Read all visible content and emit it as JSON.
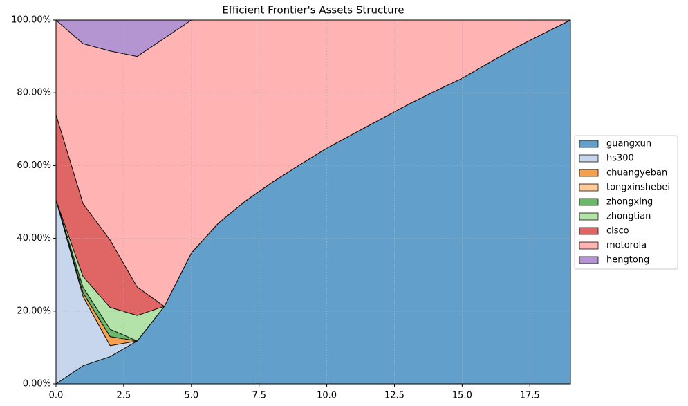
{
  "chart_data": {
    "type": "stacked_area",
    "title": "Efficient Frontier's Assets Structure",
    "x": [
      0,
      1,
      2,
      3,
      4,
      5,
      6,
      7,
      8,
      9,
      10,
      11,
      12,
      13,
      14,
      15,
      16,
      17,
      18,
      19
    ],
    "series": [
      {
        "name": "guangxun",
        "color": "#629fca",
        "values": [
          0,
          5,
          7.5,
          11.8,
          21.3,
          36,
          44.2,
          50.3,
          55.5,
          60.2,
          64.8,
          68.8,
          72.8,
          76.8,
          80.5,
          84,
          88.3,
          92.5,
          96.3,
          100
        ]
      },
      {
        "name": "hs300",
        "color": "#c7d6ec",
        "values": [
          50.5,
          19,
          3,
          0,
          0,
          0,
          0,
          0,
          0,
          0,
          0,
          0,
          0,
          0,
          0,
          0,
          0,
          0,
          0,
          0
        ]
      },
      {
        "name": "chuangyeban",
        "color": "#f5a14f",
        "values": [
          0,
          1,
          2.5,
          0,
          0,
          0,
          0,
          0,
          0,
          0,
          0,
          0,
          0,
          0,
          0,
          0,
          0,
          0,
          0,
          0
        ]
      },
      {
        "name": "tongxinshebei",
        "color": "#ffcc99",
        "values": [
          0,
          0,
          0,
          0,
          0,
          0,
          0,
          0,
          0,
          0,
          0,
          0,
          0,
          0,
          0,
          0,
          0,
          0,
          0,
          0
        ]
      },
      {
        "name": "zhongxing",
        "color": "#6ab86a",
        "values": [
          0,
          1.5,
          2,
          0,
          0,
          0,
          0,
          0,
          0,
          0,
          0,
          0,
          0,
          0,
          0,
          0,
          0,
          0,
          0,
          0
        ]
      },
      {
        "name": "zhongtian",
        "color": "#b3e3a8",
        "values": [
          0,
          3,
          6,
          7,
          0,
          0,
          0,
          0,
          0,
          0,
          0,
          0,
          0,
          0,
          0,
          0,
          0,
          0,
          0,
          0
        ]
      },
      {
        "name": "cisco",
        "color": "#e06666",
        "values": [
          23.5,
          20,
          18.5,
          7.8,
          0,
          0,
          0,
          0,
          0,
          0,
          0,
          0,
          0,
          0,
          0,
          0,
          0,
          0,
          0,
          0
        ]
      },
      {
        "name": "motorola",
        "color": "#ffb3b3",
        "values": [
          26,
          44,
          52,
          63.4,
          73.7,
          64,
          55.8,
          49.7,
          44.5,
          39.8,
          35.2,
          31.2,
          27.2,
          23.2,
          19.5,
          16,
          11.7,
          7.5,
          3.7,
          0
        ]
      },
      {
        "name": "hengtong",
        "color": "#b495d1",
        "values": [
          0,
          6.5,
          8.5,
          10,
          5,
          0,
          0,
          0,
          0,
          0,
          0,
          0,
          0,
          0,
          0,
          0,
          0,
          0,
          0,
          0
        ]
      }
    ],
    "xlim": [
      0,
      19
    ],
    "xticks": [
      {
        "value": 0,
        "label": "0.0"
      },
      2.5,
      {
        "value": 5,
        "label": "5.0"
      },
      7.5,
      {
        "value": 10,
        "label": "10.0"
      },
      12.5,
      {
        "value": 15,
        "label": "15.0"
      },
      17.5
    ],
    "ylim": [
      0,
      100
    ],
    "yticks": [
      {
        "value": 0,
        "label": "0.00%"
      },
      {
        "value": 20,
        "label": "20.00%"
      },
      {
        "value": 40,
        "label": "40.00%"
      },
      {
        "value": 60,
        "label": "60.00%"
      },
      {
        "value": 80,
        "label": "80.00%"
      },
      {
        "value": 100,
        "label": "100.00%"
      }
    ],
    "grid": true,
    "legend": "right"
  }
}
